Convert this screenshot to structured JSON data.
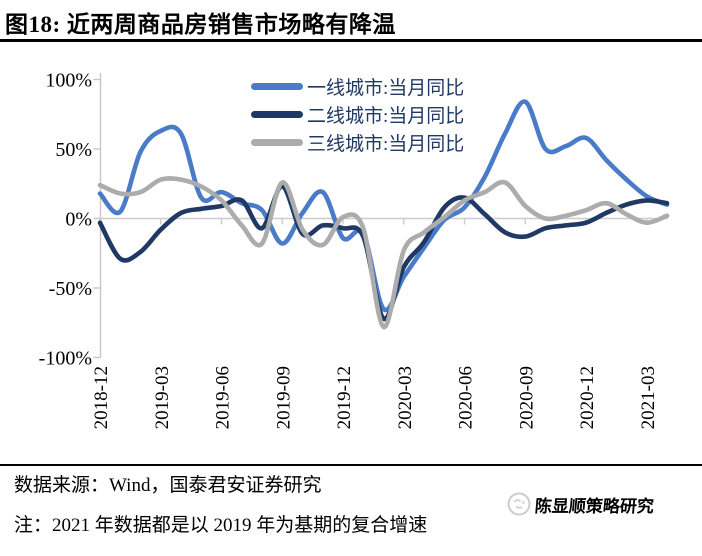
{
  "figure": {
    "title": "图18: 近两周商品房销售市场略有降温"
  },
  "chart_data": {
    "type": "line",
    "x": [
      "2018-12",
      "2019-01",
      "2019-02",
      "2019-03",
      "2019-04",
      "2019-05",
      "2019-06",
      "2019-07",
      "2019-08",
      "2019-09",
      "2019-10",
      "2019-11",
      "2019-12",
      "2020-01",
      "2020-02",
      "2020-03",
      "2020-04",
      "2020-05",
      "2020-06",
      "2020-07",
      "2020-08",
      "2020-09",
      "2020-10",
      "2020-11",
      "2020-12",
      "2021-01",
      "2021-02",
      "2021-03",
      "2021-04"
    ],
    "x_tick_every": 3,
    "y_axis": {
      "tick_labels": [
        "100%",
        "50%",
        "0%",
        "-50%",
        "-100%"
      ],
      "tick_values": [
        100,
        50,
        0,
        -50,
        -100
      ],
      "ylim": [
        -100,
        100
      ],
      "unit": "%"
    },
    "series": [
      {
        "name": "一线城市:当月同比",
        "color": "#4A7BC8",
        "values": [
          18,
          5,
          48,
          63,
          61,
          15,
          19,
          11,
          6,
          -18,
          4,
          19,
          -14,
          -11,
          -65,
          -42,
          -21,
          -1,
          8,
          30,
          61,
          84,
          50,
          52,
          58,
          42,
          28,
          16,
          10
        ]
      },
      {
        "name": "二线城市:当月同比",
        "color": "#1F3864",
        "values": [
          -3,
          -29,
          -24,
          -8,
          4,
          7,
          9,
          13,
          -7,
          23,
          -11,
          -5,
          -7,
          -13,
          -72,
          -35,
          -17,
          8,
          15,
          3,
          -10,
          -13,
          -7,
          -5,
          -3,
          4,
          10,
          13,
          11
        ]
      },
      {
        "name": "三线城市:当月同比",
        "color": "#ACACAC",
        "values": [
          24,
          18,
          19,
          28,
          28,
          23,
          13,
          -5,
          -18,
          26,
          -8,
          -19,
          1,
          -7,
          -78,
          -23,
          -10,
          1,
          13,
          19,
          26,
          9,
          0,
          2,
          6,
          11,
          3,
          -3,
          2
        ]
      }
    ],
    "legend_position": "top-inside",
    "grid": "zero-line-only"
  },
  "footer": {
    "source": "数据来源：Wind，国泰君安证券研究",
    "note": "注：2021 年数据都是以 2019 年为基期的复合增速",
    "watermark": "陈显顺策略研究"
  },
  "colors": {
    "axis": "#C6C6C6",
    "zero_line": "#CCCCCC",
    "axis_text": "#000000",
    "legend_text": "#1F3864",
    "watermark": "#C5C5C5"
  }
}
